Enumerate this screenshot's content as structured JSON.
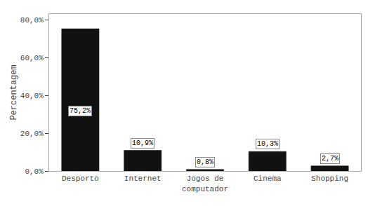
{
  "chart_data": {
    "type": "bar",
    "ylabel": "Percentagem",
    "categories": [
      "Desporto",
      "Internet",
      "Jogos de\ncomputador",
      "Cinema",
      "Shopping"
    ],
    "values": [
      75.2,
      10.9,
      0.8,
      10.3,
      2.7
    ],
    "value_labels": [
      "75,2%",
      "10,9%",
      "0,8%",
      "10,3%",
      "2,7%"
    ],
    "data_labels": true,
    "color": "#111111",
    "ylim": [
      0,
      83
    ],
    "yticks": [
      {
        "value": 0,
        "label": "0,0%"
      },
      {
        "value": 20,
        "label": "20,0%"
      },
      {
        "value": 40,
        "label": "40,0%"
      },
      {
        "value": 60,
        "label": "60,0%"
      },
      {
        "value": 80,
        "label": "80,0%"
      }
    ],
    "grid": false
  }
}
